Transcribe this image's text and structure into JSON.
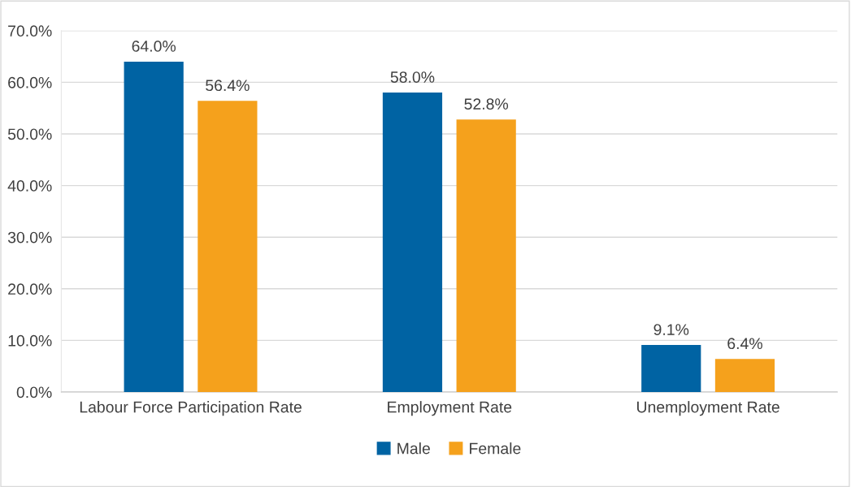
{
  "chart_data": {
    "type": "bar",
    "categories": [
      "Labour Force Participation Rate",
      "Employment Rate",
      "Unemployment Rate"
    ],
    "series": [
      {
        "name": "Male",
        "color": "#0063a3",
        "values": [
          64.0,
          58.0,
          9.1
        ],
        "value_labels": [
          "64.0%",
          "58.0%",
          "9.1%"
        ]
      },
      {
        "name": "Female",
        "color": "#f5a11c",
        "values": [
          56.4,
          52.8,
          6.4
        ],
        "value_labels": [
          "56.4%",
          "52.8%",
          "6.4%"
        ]
      }
    ],
    "ylim": [
      0,
      70
    ],
    "yticks": [
      {
        "value": 0,
        "label": "0.0%"
      },
      {
        "value": 10,
        "label": "10.0%"
      },
      {
        "value": 20,
        "label": "20.0%"
      },
      {
        "value": 30,
        "label": "30.0%"
      },
      {
        "value": 40,
        "label": "40.0%"
      },
      {
        "value": 50,
        "label": "50.0%"
      },
      {
        "value": 60,
        "label": "60.0%"
      },
      {
        "value": 70,
        "label": "70.0%"
      }
    ],
    "grid": "y",
    "legend": "bottom"
  }
}
